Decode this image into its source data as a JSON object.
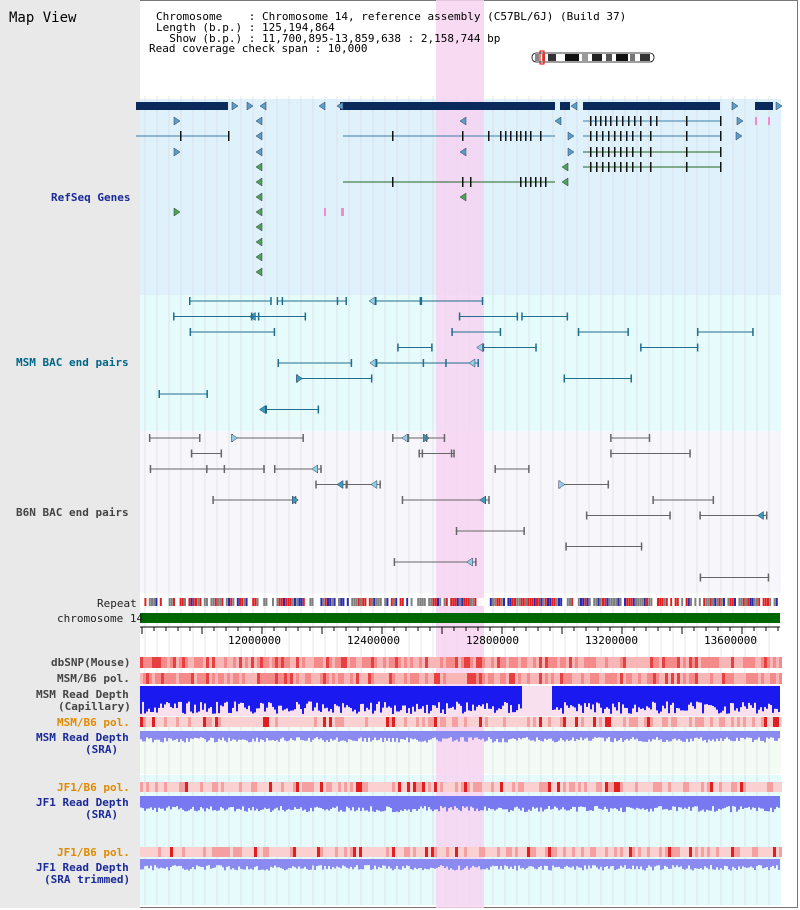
{
  "page": {
    "title": "Map View"
  },
  "header": {
    "chromosome": "Chromosome    : Chromosome 14, reference assembly (C57BL/6J) (Build 37)",
    "length": "Length (b.p.) : 125,194,864",
    "show": "  Show (b.p.) : 11,700,895-13,859,638 : 2,158,744 bp",
    "coverage": "Read coverage check span : 10,000"
  },
  "tracks": {
    "refseq": "RefSeq Genes",
    "msm_bac": "MSM BAC end pairs",
    "b6n_bac": "B6N BAC end pairs",
    "repeat": "Repeat",
    "chromosome": "chromosome 14",
    "dbsnp": "dbSNP(Mouse)",
    "msm_pol1": "MSM/B6 pol.",
    "msm_depth_cap1": "MSM Read Depth",
    "msm_depth_cap2": "(Capillary)",
    "msm_pol2": "MSM/B6 pol.",
    "msm_depth_sra1": "MSM Read Depth",
    "msm_depth_sra2": "(SRA)",
    "jf1_pol1": "JF1/B6 pol.",
    "jf1_depth1": "JF1 Read Depth",
    "jf1_depth2": "(SRA)",
    "jf1_pol2": "JF1/B6 pol.",
    "jf1_depth_trim1": "JF1 Read Depth",
    "jf1_depth_trim2": "(SRA trimmed)"
  },
  "axis": {
    "ticks": [
      "12000000",
      "12400000",
      "12800000",
      "13200000",
      "13600000"
    ]
  },
  "colors": {
    "refseq_bg": "#dff1fb",
    "msm_bg": "#e6fbfb",
    "b6n_bg": "#f7f7fb",
    "highlight": "#f7d4f1",
    "gene_dark": "#0b2a5c",
    "chromosome_bar": "#006600",
    "depth_capillary": "#1a1af0",
    "depth_sra": "#8a8af0"
  }
}
